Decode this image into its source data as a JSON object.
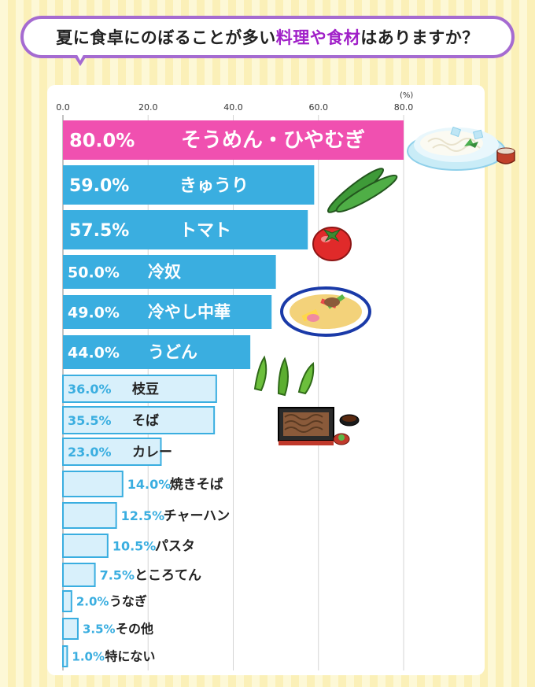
{
  "title": {
    "prefix": "夏に食卓にのぼることが多い",
    "highlight": "料理や食材",
    "suffix": "はありますか？"
  },
  "colors": {
    "title_highlight": "#a020c8",
    "top_bar": "#f050b0",
    "main_bars": "#3aaee0",
    "light_bar_fill": "#d8f0fb",
    "light_bar_stroke": "#3aaee0",
    "title_border": "#a56bd1"
  },
  "chart_data": {
    "type": "bar",
    "orientation": "horizontal",
    "unit": "(%)",
    "xlim": [
      0,
      80
    ],
    "x_ticks": [
      "0.0",
      "20.0",
      "40.0",
      "60.0",
      "80.0"
    ],
    "grid": true,
    "categories": [
      "そうめん・ひやむぎ",
      "きゅうり",
      "トマト",
      "冷奴",
      "冷やし中華",
      "うどん",
      "枝豆",
      "そば",
      "カレー",
      "焼きそば",
      "チャーハン",
      "パスタ",
      "ところてん",
      "うなぎ",
      "その他",
      "特にない"
    ],
    "values": [
      80.0,
      59.0,
      57.5,
      50.0,
      49.0,
      44.0,
      36.0,
      35.5,
      23.0,
      14.0,
      12.5,
      10.5,
      7.5,
      2.0,
      3.5,
      1.0
    ],
    "value_labels": [
      "80.0%",
      "59.0%",
      "57.5%",
      "50.0%",
      "49.0%",
      "44.0%",
      "36.0%",
      "35.5%",
      "23.0%",
      "14.0%",
      "12.5%",
      "10.5%",
      "7.5%",
      "2.0%",
      "3.5%",
      "1.0%"
    ]
  },
  "illustrations": [
    "somen-icon",
    "cucumber-icon",
    "tomato-icon",
    "hiyashi-chuka-icon",
    "edamame-icon",
    "soba-icon"
  ]
}
